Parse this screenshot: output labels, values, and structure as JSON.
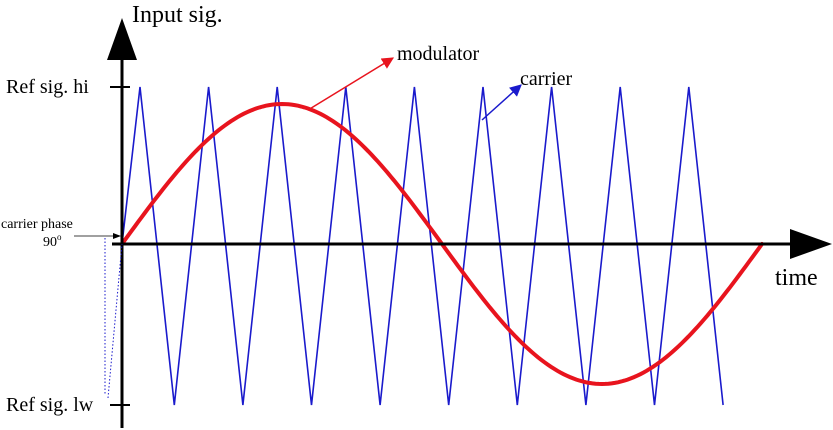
{
  "labels": {
    "y_axis": "Input sig.",
    "x_axis": "time",
    "ref_high": "Ref sig. hi",
    "ref_low": "Ref sig. lw",
    "phase_line1": "carrier phase",
    "phase_line2": "90",
    "phase_degree": "o",
    "modulator": "modulator",
    "carrier": "carrier"
  },
  "colors": {
    "axis": "#000000",
    "modulator": "#e8141e",
    "carrier": "#1a1acc",
    "text": "#000000"
  },
  "signals": {
    "carrier": {
      "shape": "triangle",
      "visible_peaks": 9,
      "visible_troughs": 9,
      "range": [
        "Ref sig. lw",
        "Ref sig. hi"
      ]
    },
    "modulator": {
      "shape": "sine",
      "cycles": 1
    }
  }
}
